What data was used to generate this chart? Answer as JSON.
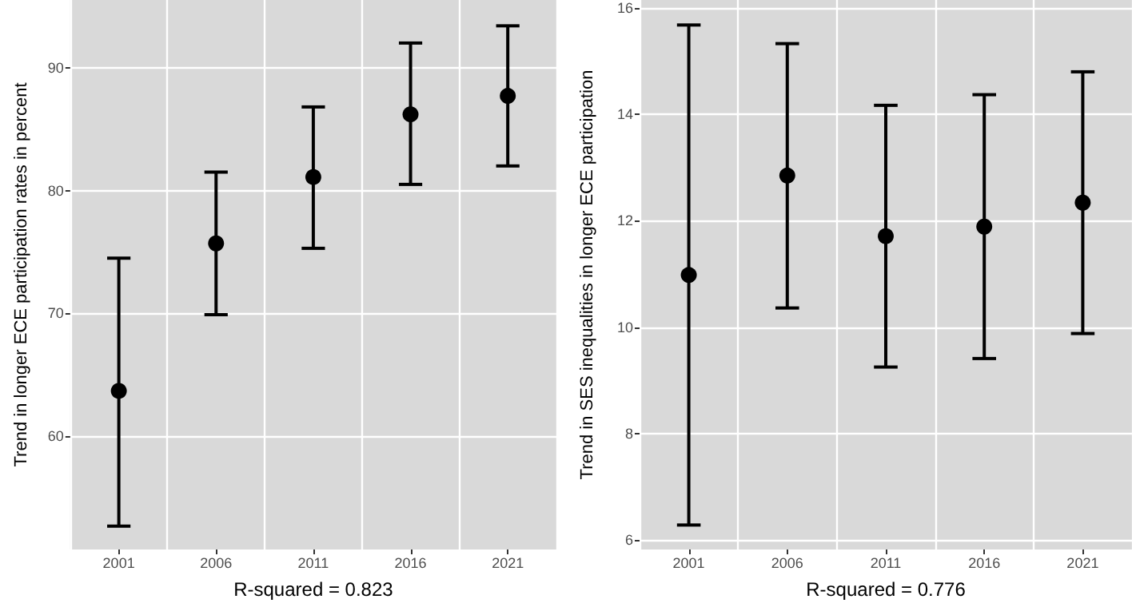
{
  "chart_data": [
    {
      "type": "scatter",
      "xlabel": "R-squared = 0.823",
      "ylabel": "Trend in longer ECE participation rates in percent",
      "categories": [
        "2001",
        "2006",
        "2011",
        "2016",
        "2021"
      ],
      "series": [
        {
          "color": "#000000",
          "values": [
            63.7,
            75.7,
            81.1,
            86.2,
            87.7
          ],
          "errors": [
            [
              52.7,
              74.5
            ],
            [
              69.9,
              81.5
            ],
            [
              75.3,
              86.8
            ],
            [
              80.5,
              92.0
            ],
            [
              82.0,
              93.4
            ]
          ]
        }
      ],
      "ylim": [
        50.8,
        95.5
      ],
      "yticks": [
        60,
        70,
        80,
        90
      ],
      "grid": true,
      "marker": "circle"
    },
    {
      "type": "scatter",
      "xlabel": "R-squared = 0.776",
      "ylabel": "Trend in SES inequalities in longer ECE participation",
      "categories": [
        "2001",
        "2006",
        "2011",
        "2016",
        "2021"
      ],
      "series": [
        {
          "color": "#000000",
          "values": [
            10.98,
            12.85,
            11.71,
            11.89,
            12.34
          ],
          "errors": [
            [
              6.28,
              15.68
            ],
            [
              10.36,
              15.33
            ],
            [
              9.25,
              14.17
            ],
            [
              9.41,
              14.37
            ],
            [
              9.88,
              14.8
            ]
          ]
        }
      ],
      "ylim": [
        5.82,
        16.15
      ],
      "yticks": [
        6,
        8,
        10,
        12,
        14,
        16
      ],
      "grid": true,
      "marker": "circle"
    }
  ]
}
